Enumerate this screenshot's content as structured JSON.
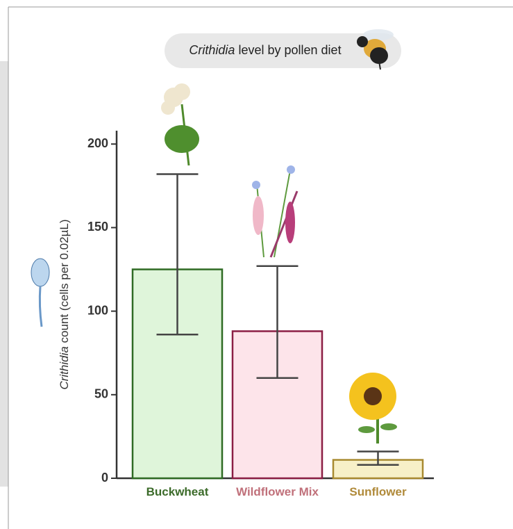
{
  "chart_data": {
    "type": "bar",
    "title": {
      "italic": "Crithidia",
      "text": "level by pollen diet"
    },
    "y_label": {
      "italic": "Crithidia",
      "text": "count (cells per 0.02µL)"
    },
    "categories": [
      "Buckwheat",
      "Wildflower Mix",
      "Sunflower"
    ],
    "values": [
      125,
      88,
      11
    ],
    "error_minus": [
      39,
      28,
      3
    ],
    "error_plus": [
      57,
      39,
      5
    ],
    "colors": [
      "#dff5da",
      "#fde4ea",
      "#f7f0c8"
    ],
    "edge_colors": [
      "#2f6b24",
      "#8b1e44",
      "#a88a30"
    ],
    "label_colors": [
      "#3c6b2a",
      "#c0707a",
      "#b08a3a"
    ],
    "ylim": [
      0,
      208
    ],
    "yticks": [
      0,
      50,
      100,
      150,
      200
    ],
    "grid": false
  }
}
